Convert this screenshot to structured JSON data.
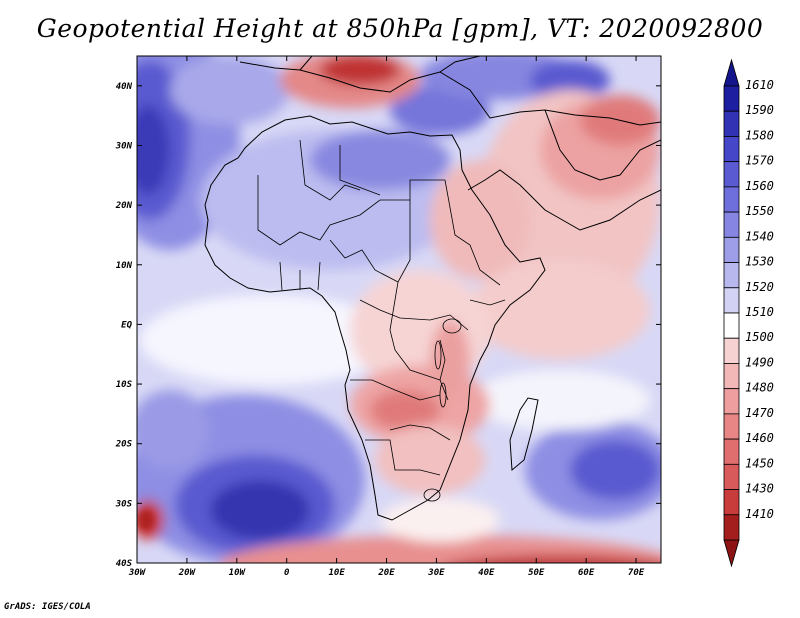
{
  "title": "Geopotential Height at 850hPa [gpm], VT: 2020092800",
  "credit": "GrADS: IGES/COLA",
  "map": {
    "region": "Africa",
    "variable": "Geopotential Height at 850hPa",
    "units": "gpm",
    "valid_time": "2020092800",
    "lon_range": [
      -30,
      75
    ],
    "lat_range": [
      -40,
      45
    ],
    "lat_labels": [
      "40N",
      "30N",
      "20N",
      "10N",
      "EQ",
      "10S",
      "20S",
      "30S",
      "40S"
    ],
    "lon_labels": [
      "30W",
      "20W",
      "10W",
      "0",
      "10E",
      "20E",
      "30E",
      "40E",
      "50E",
      "60E",
      "70E"
    ]
  },
  "colorbar": {
    "labels": [
      "1610",
      "1590",
      "1580",
      "1570",
      "1560",
      "1550",
      "1540",
      "1530",
      "1520",
      "1510",
      "1500",
      "1490",
      "1480",
      "1470",
      "1460",
      "1450",
      "1430",
      "1410"
    ],
    "colors": [
      "#1e1ea0",
      "#3232b4",
      "#4646c8",
      "#5a5ad2",
      "#6e6edc",
      "#8686e2",
      "#9e9ee8",
      "#b8b8ee",
      "#d2d2f4",
      "#ffffff",
      "#f6d2d2",
      "#f2b8b8",
      "#ee9e9e",
      "#e88686",
      "#e06e6e",
      "#d85a5a",
      "#c83c3c",
      "#a51e1e"
    ],
    "top_arrow_color": "#14148c",
    "bottom_arrow_color": "#8c1414"
  },
  "colors": {
    "background": "#ffffff",
    "ocean_base": "#c0c0f0"
  }
}
